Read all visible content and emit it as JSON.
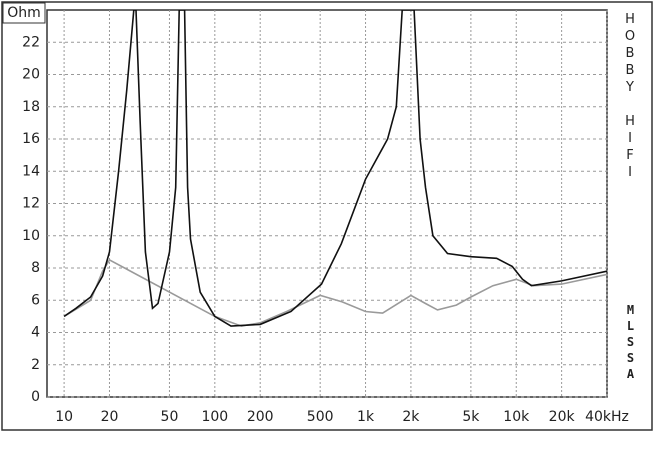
{
  "chart_data": {
    "type": "line",
    "y_label": "Ohm",
    "log_x": true,
    "grid": true,
    "side_labels": [
      "HOBBY HIFI",
      "MLSSA"
    ],
    "xlim": [
      7.7,
      40000
    ],
    "ylim": [
      0,
      24
    ],
    "xticks": [
      10,
      20,
      50,
      100,
      200,
      500,
      {
        "value": 1000,
        "label": "1k"
      },
      {
        "value": 2000,
        "label": "2k"
      },
      {
        "value": 5000,
        "label": "5k"
      },
      {
        "value": 10000,
        "label": "10k"
      },
      {
        "value": 20000,
        "label": "20k"
      },
      {
        "value": 40000,
        "label": "40kHz"
      }
    ],
    "yticks": [
      0,
      2,
      4,
      6,
      8,
      10,
      12,
      14,
      16,
      18,
      20,
      22
    ],
    "series": [
      {
        "color": "#9a9a9a",
        "x": [
          10,
          15,
          18,
          20,
          100,
          150,
          200,
          300,
          500,
          700,
          1000,
          1300,
          2000,
          2500,
          3000,
          4000,
          5000,
          7000,
          10000,
          13000,
          20000,
          40000
        ],
        "values": [
          5.0,
          6.0,
          7.8,
          8.5,
          5.0,
          4.4,
          4.6,
          5.3,
          6.3,
          5.9,
          5.3,
          5.2,
          6.3,
          5.8,
          5.4,
          5.7,
          6.2,
          6.9,
          7.3,
          6.9,
          7.0,
          7.6
        ]
      },
      {
        "color": "#111111",
        "x": [
          10,
          12,
          15,
          18,
          20,
          23,
          26,
          29,
          30,
          32,
          34.6,
          38.6,
          42,
          50,
          55,
          58,
          63,
          66,
          69,
          80,
          100,
          128,
          200,
          320,
          510,
          690,
          1000,
          1400,
          1600,
          1750,
          2100,
          2300,
          2500,
          2800,
          3500,
          5000,
          7400,
          9400,
          11000,
          12600,
          20000,
          40000
        ],
        "values": [
          5.0,
          5.5,
          6.2,
          7.5,
          9.0,
          14.0,
          19.0,
          24,
          24,
          17,
          9.0,
          5.5,
          5.8,
          9.0,
          13,
          24,
          24,
          13,
          9.8,
          6.5,
          5.0,
          4.4,
          4.5,
          5.3,
          7.0,
          9.5,
          13.5,
          16,
          18,
          24,
          24,
          16,
          13,
          10,
          8.9,
          8.7,
          8.6,
          8.1,
          7.3,
          6.9,
          7.2,
          7.8
        ]
      }
    ]
  }
}
